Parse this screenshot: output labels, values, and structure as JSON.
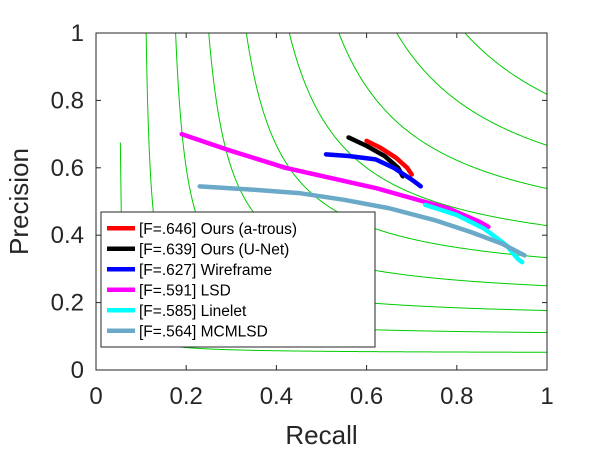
{
  "chart_data": {
    "type": "line",
    "title": "",
    "xlabel": "Recall",
    "ylabel": "Precision",
    "xlim": [
      0,
      1
    ],
    "ylim": [
      0,
      1
    ],
    "x_ticks": [
      "0",
      "0.2",
      "0.4",
      "0.6",
      "0.8",
      "1"
    ],
    "y_ticks": [
      "0",
      "0.2",
      "0.4",
      "0.6",
      "0.8",
      "1"
    ],
    "grid": false,
    "iso_f_contours": {
      "color": "#00cc00",
      "f_values": [
        0.1,
        0.2,
        0.3,
        0.4,
        0.5,
        0.6,
        0.7,
        0.8,
        0.9
      ]
    },
    "legend_position": "lower-left",
    "series": [
      {
        "name": "[F=.646] Ours (a-trous)",
        "color": "#ff0000",
        "x": [
          0.6,
          0.63,
          0.665,
          0.69,
          0.7
        ],
        "y": [
          0.68,
          0.66,
          0.63,
          0.6,
          0.58
        ]
      },
      {
        "name": "[F=.639] Ours (U-Net)",
        "color": "#000000",
        "x": [
          0.56,
          0.6,
          0.64,
          0.67,
          0.68
        ],
        "y": [
          0.69,
          0.665,
          0.635,
          0.6,
          0.575
        ]
      },
      {
        "name": "[F=.627] Wireframe",
        "color": "#0000ff",
        "x": [
          0.51,
          0.56,
          0.62,
          0.66,
          0.7,
          0.72
        ],
        "y": [
          0.64,
          0.635,
          0.625,
          0.6,
          0.565,
          0.545
        ]
      },
      {
        "name": "[F=.591] LSD",
        "color": "#ff00ff",
        "x": [
          0.19,
          0.3,
          0.42,
          0.52,
          0.62,
          0.7,
          0.78,
          0.85,
          0.87
        ],
        "y": [
          0.7,
          0.65,
          0.6,
          0.57,
          0.54,
          0.51,
          0.48,
          0.44,
          0.425
        ]
      },
      {
        "name": "[F=.585] Linelet",
        "color": "#00ffff",
        "x": [
          0.73,
          0.8,
          0.86,
          0.91,
          0.935,
          0.945
        ],
        "y": [
          0.49,
          0.46,
          0.42,
          0.37,
          0.33,
          0.32
        ]
      },
      {
        "name": "[F=.564] MCMLSD",
        "color": "#6aa9c8",
        "x": [
          0.23,
          0.35,
          0.45,
          0.55,
          0.65,
          0.75,
          0.83,
          0.9,
          0.95
        ],
        "y": [
          0.545,
          0.535,
          0.525,
          0.505,
          0.48,
          0.445,
          0.41,
          0.375,
          0.34
        ]
      }
    ]
  }
}
